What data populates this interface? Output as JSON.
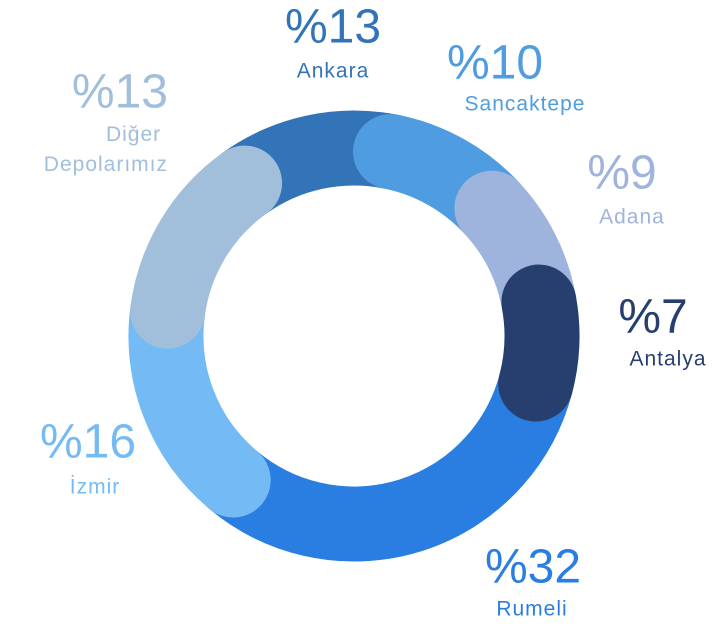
{
  "chart_data": {
    "type": "donut",
    "categories": [
      "Ankara",
      "Sancaktepe",
      "Adana",
      "Antalya",
      "Rumeli",
      "İzmir",
      "Diğer Depolarımız"
    ],
    "values": [
      13,
      10,
      9,
      7,
      32,
      16,
      13
    ],
    "value_labels": [
      "%13",
      "%10",
      "%9",
      "%7",
      "%32",
      "%16",
      "%13"
    ],
    "colors": [
      "#3374b8",
      "#4f9de0",
      "#9fb4dd",
      "#263f6e",
      "#2a7de1",
      "#74bbf5",
      "#a1bedb"
    ]
  }
}
